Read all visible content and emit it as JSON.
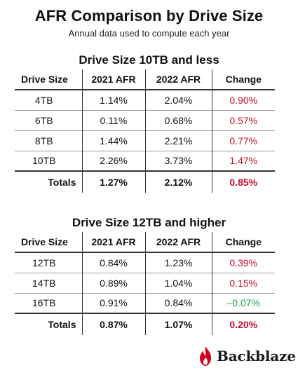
{
  "title": "AFR Comparison by Drive Size",
  "subtitle": "Annual data used to compute each year",
  "brand": {
    "name": "Backblaze",
    "icon": "flame-icon",
    "color": "#d0021b"
  },
  "colors": {
    "increase": "#c8102e",
    "decrease": "#22a047"
  },
  "columns": [
    "Drive Size",
    "2021 AFR",
    "2022 AFR",
    "Change"
  ],
  "chart_data": [
    {
      "type": "table",
      "title": "Drive Size 10TB and less",
      "columns": [
        "Drive Size",
        "2021 AFR",
        "2022 AFR",
        "Change"
      ],
      "rows": [
        {
          "size": "4TB",
          "afr2021": "1.14%",
          "afr2022": "2.04%",
          "change": "0.90%"
        },
        {
          "size": "6TB",
          "afr2021": "0.11%",
          "afr2022": "0.68%",
          "change": "0.57%"
        },
        {
          "size": "8TB",
          "afr2021": "1.44%",
          "afr2022": "2.21%",
          "change": "0.77%"
        },
        {
          "size": "10TB",
          "afr2021": "2.26%",
          "afr2022": "3.73%",
          "change": "1.47%"
        }
      ],
      "totals": {
        "label": "Totals",
        "afr2021": "1.27%",
        "afr2022": "2.12%",
        "change": "0.85%"
      }
    },
    {
      "type": "table",
      "title": "Drive Size 12TB and higher",
      "columns": [
        "Drive Size",
        "2021 AFR",
        "2022 AFR",
        "Change"
      ],
      "rows": [
        {
          "size": "12TB",
          "afr2021": "0.84%",
          "afr2022": "1.23%",
          "change": "0.39%"
        },
        {
          "size": "14TB",
          "afr2021": "0.89%",
          "afr2022": "1.04%",
          "change": "0.15%"
        },
        {
          "size": "16TB",
          "afr2021": "0.91%",
          "afr2022": "0.84%",
          "change": "-0.07%"
        }
      ],
      "totals": {
        "label": "Totals",
        "afr2021": "0.87%",
        "afr2022": "1.07%",
        "change": "0.20%"
      }
    }
  ]
}
